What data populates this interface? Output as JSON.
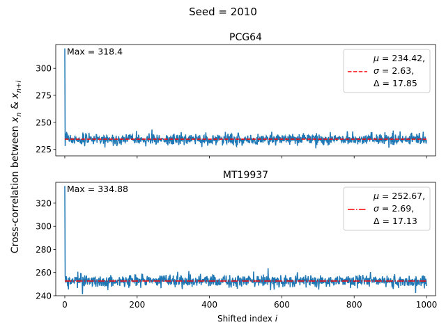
{
  "figure": {
    "suptitle": "Seed = 2010",
    "shared_ylabel": "Cross-correlation between x_n & x_{n+i}",
    "shared_xlabel": "Shifted index i"
  },
  "chart_data": [
    {
      "type": "line",
      "title": "PCG64",
      "xlabel": "",
      "ylabel": "",
      "xlim": [
        -25,
        1025
      ],
      "ylim": [
        219,
        322
      ],
      "x_ticks": [
        0,
        200,
        400,
        600,
        800,
        1000
      ],
      "x_tick_labels_visible": false,
      "y_ticks": [
        225,
        250,
        275,
        300
      ],
      "grid": false,
      "legend_position": "top-right",
      "annotation": "Max = 318.4",
      "series": [
        {
          "kind": "data",
          "color": "#1f77b4",
          "x_range": [
            0,
            1000
          ],
          "first_value": 318.4,
          "typical_mean": 234.42,
          "typical_std": 2.63
        },
        {
          "kind": "mean-line",
          "color": "#ff0000",
          "linestyle": "dashed",
          "value": 234.42
        }
      ],
      "legend": {
        "mu": "234.42",
        "sigma": "2.63",
        "delta": "17.85"
      }
    },
    {
      "type": "line",
      "title": "MT19937",
      "xlabel": "Shifted index i",
      "ylabel": "",
      "xlim": [
        -25,
        1025
      ],
      "ylim": [
        240,
        338
      ],
      "x_ticks": [
        0,
        200,
        400,
        600,
        800,
        1000
      ],
      "x_tick_labels_visible": true,
      "y_ticks": [
        240,
        260,
        280,
        300,
        320
      ],
      "grid": false,
      "legend_position": "top-right",
      "annotation": "Max = 334.88",
      "series": [
        {
          "kind": "data",
          "color": "#1f77b4",
          "x_range": [
            0,
            1000
          ],
          "first_value": 334.88,
          "typical_mean": 252.67,
          "typical_std": 2.69
        },
        {
          "kind": "mean-line",
          "color": "#ff0000",
          "linestyle": "dashdot",
          "value": 252.67
        }
      ],
      "legend": {
        "mu": "252.67",
        "sigma": "2.69",
        "delta": "17.13"
      }
    }
  ]
}
